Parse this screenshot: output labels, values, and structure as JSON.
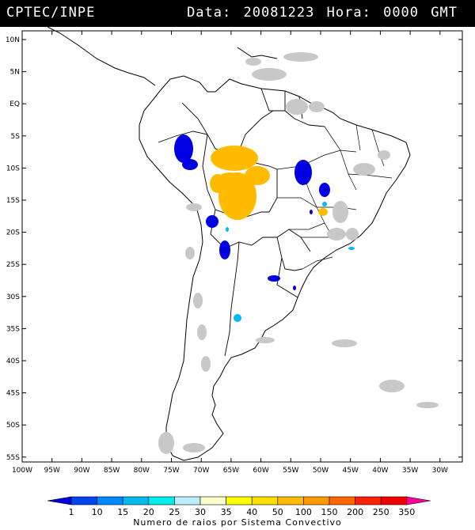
{
  "header": {
    "org": "CPTEC/INPE",
    "date_label": "Data:",
    "date_value": "20081223",
    "time_label": "Hora:",
    "time_value": "0000",
    "tz": "GMT"
  },
  "map": {
    "lat_ticks": [
      "10N",
      "5N",
      "EQ",
      "5S",
      "10S",
      "15S",
      "20S",
      "25S",
      "30S",
      "35S",
      "40S",
      "45S",
      "50S",
      "55S"
    ],
    "lon_ticks": [
      "100W",
      "95W",
      "90W",
      "85W",
      "80W",
      "75W",
      "70W",
      "65W",
      "60W",
      "55W",
      "50W",
      "45W",
      "40W",
      "35W",
      "30W"
    ]
  },
  "legend": {
    "caption": "Numero de raios por Sistema Convectivo",
    "labels": [
      "1",
      "10",
      "15",
      "20",
      "25",
      "30",
      "35",
      "40",
      "50",
      "100",
      "150",
      "200",
      "250",
      "350"
    ],
    "colors": [
      "#0000e0",
      "#0044ee",
      "#0088ff",
      "#00bbf2",
      "#00eeee",
      "#bbeeff",
      "#ffffcc",
      "#ffff00",
      "#ffdd00",
      "#ffbb00",
      "#ff9900",
      "#ff6600",
      "#ff2200",
      "#ee0000",
      "#ff0099"
    ]
  }
}
